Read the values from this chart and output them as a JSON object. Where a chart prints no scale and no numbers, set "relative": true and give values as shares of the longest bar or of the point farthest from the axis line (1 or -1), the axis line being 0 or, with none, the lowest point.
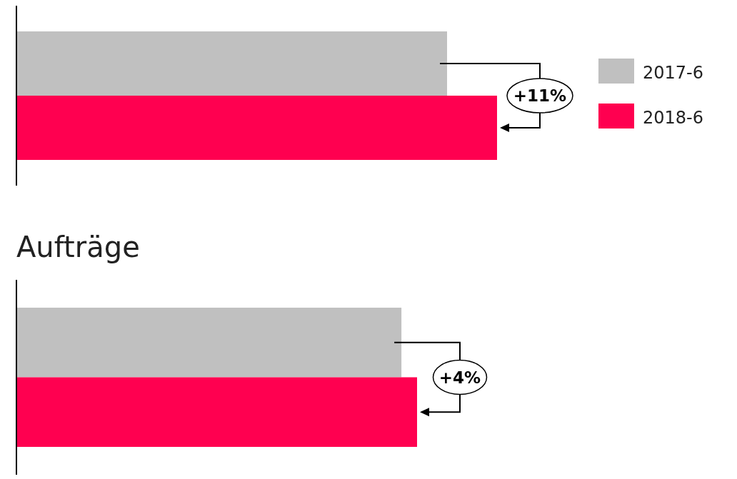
{
  "chart_data": [
    {
      "type": "bar",
      "orientation": "horizontal",
      "relative": true,
      "categories": [
        null
      ],
      "series": [
        {
          "name": "2017-6",
          "color": "#c0c0c0",
          "values": [
            0.896
          ]
        },
        {
          "name": "2018-6",
          "color": "#ff0050",
          "values": [
            1
          ]
        }
      ],
      "annotations": [
        "+11%"
      ],
      "legend": "right"
    },
    {
      "type": "bar",
      "orientation": "horizontal",
      "relative": true,
      "title": "Aufträge",
      "categories": [
        null
      ],
      "series": [
        {
          "color": "#c0c0c0",
          "values": [
            0.961
          ]
        },
        {
          "color": "#ff0050",
          "values": [
            1
          ]
        }
      ],
      "annotations": [
        "+4%"
      ],
      "legend": false
    }
  ]
}
